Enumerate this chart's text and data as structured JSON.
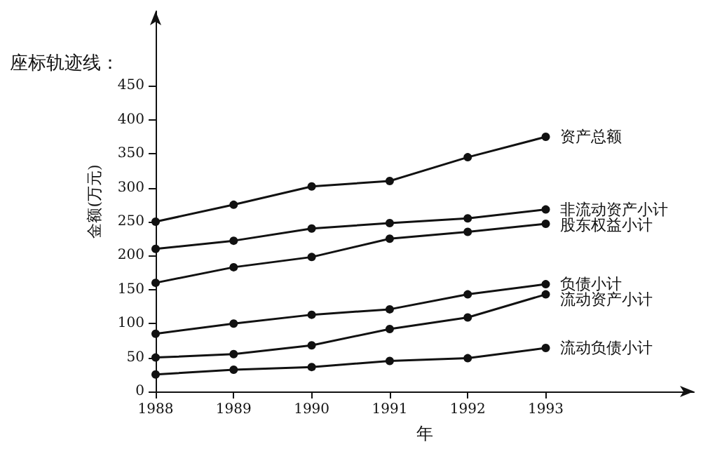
{
  "chart_data": {
    "type": "line",
    "title": "座标轨迹线：",
    "xlabel": "年",
    "ylabel": "金额(万元)",
    "x": [
      1988,
      1989,
      1990,
      1991,
      1992,
      1993
    ],
    "xlim": [
      1988,
      1994.9
    ],
    "xticks": [
      1988,
      1989,
      1990,
      1991,
      1992,
      1993
    ],
    "ylim": [
      0,
      560
    ],
    "yticks": [
      0,
      50,
      100,
      150,
      200,
      250,
      300,
      350,
      400,
      450
    ],
    "series": [
      {
        "name": "资产总额",
        "color": "#111111",
        "values": [
          250,
          275,
          302,
          310,
          345,
          375
        ]
      },
      {
        "name": "非流动资产小计",
        "color": "#111111",
        "values": [
          210,
          222,
          240,
          248,
          255,
          268
        ]
      },
      {
        "name": "股东权益小计",
        "color": "#111111",
        "values": [
          160,
          183,
          198,
          225,
          235,
          247
        ]
      },
      {
        "name": "负债小计",
        "color": "#111111",
        "values": [
          85,
          100,
          113,
          121,
          143,
          158
        ]
      },
      {
        "name": "流动资产小计",
        "color": "#111111",
        "values": [
          50,
          55,
          68,
          92,
          109,
          143
        ]
      },
      {
        "name": "流动负债小计",
        "color": "#111111",
        "values": [
          25,
          32,
          36,
          45,
          49,
          64
        ]
      }
    ],
    "marker": "circle",
    "line_style": "solid",
    "grid": false,
    "legend": false
  }
}
